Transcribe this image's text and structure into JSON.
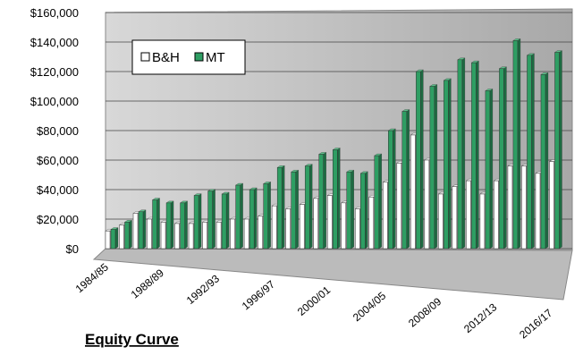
{
  "chart_data": {
    "type": "bar3d",
    "title": "Equity Curve",
    "categories": [
      "1984/85",
      null,
      null,
      null,
      "1988/89",
      null,
      null,
      null,
      "1992/93",
      null,
      null,
      null,
      "1996/97",
      null,
      null,
      null,
      "2000/01",
      null,
      null,
      null,
      "2004/05",
      null,
      null,
      null,
      "2008/09",
      null,
      null,
      null,
      "2012/13",
      null,
      null,
      null,
      "2016/17"
    ],
    "series": [
      {
        "name": "B&H",
        "color": "#ffffff",
        "values": [
          12000,
          16000,
          24000,
          20000,
          18000,
          17000,
          17000,
          18000,
          18000,
          20000,
          20000,
          22000,
          29000,
          27000,
          30000,
          34000,
          36000,
          31000,
          27000,
          35000,
          45000,
          58000,
          77000,
          60000,
          37000,
          42000,
          46000,
          37000,
          46000,
          56000,
          56000,
          51000,
          59000
        ]
      },
      {
        "name": "MT",
        "color": "#2e9e63",
        "values": [
          13000,
          18000,
          25000,
          33000,
          31000,
          31000,
          36000,
          39000,
          37000,
          43000,
          40000,
          44000,
          55000,
          52000,
          56000,
          64000,
          67000,
          52000,
          51000,
          63000,
          80000,
          93000,
          120000,
          110000,
          114000,
          128000,
          126000,
          107000,
          122000,
          141000,
          131000,
          118000,
          133000
        ]
      }
    ],
    "ylim": [
      0,
      160000
    ],
    "yticks": [
      {
        "value": 0,
        "label": "$0"
      },
      {
        "value": 20000,
        "label": "$20,000"
      },
      {
        "value": 40000,
        "label": "$40,000"
      },
      {
        "value": 60000,
        "label": "$60,000"
      },
      {
        "value": 80000,
        "label": "$80,000"
      },
      {
        "value": 100000,
        "label": "$100,000"
      },
      {
        "value": 120000,
        "label": "$120,000"
      },
      {
        "value": 140000,
        "label": "$140,000"
      },
      {
        "value": 160000,
        "label": "$160,000"
      }
    ],
    "grid": true,
    "legend": "top-left"
  }
}
